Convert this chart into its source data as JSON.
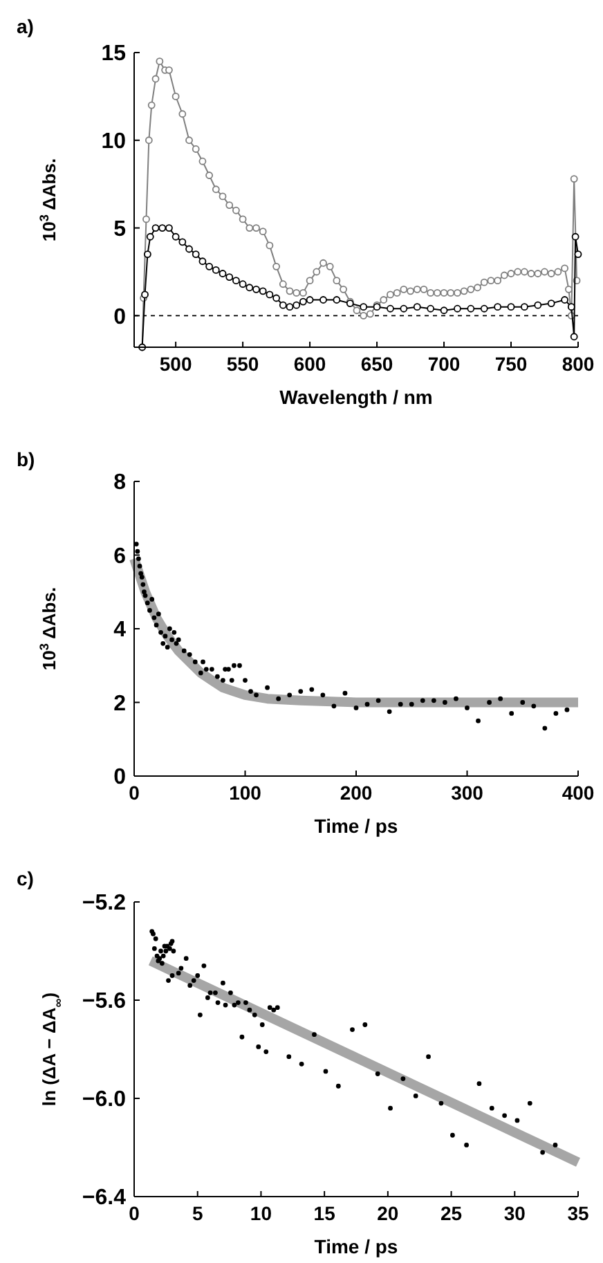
{
  "chart_data": [
    {
      "type": "line",
      "title": "a)",
      "xlabel": "Wavelength / nm",
      "ylabel": "10$^{3}$ ΔAbs.",
      "xlim": [
        469,
        800
      ],
      "ylim": [
        -1.8,
        15
      ],
      "xticks": [
        500,
        550,
        600,
        650,
        700,
        750,
        800
      ],
      "yticks": [
        0,
        5,
        10,
        15
      ],
      "marker": "circle",
      "ref_lines": [
        {
          "axis": "y",
          "value": 0,
          "line_style": "dashed",
          "color": "#000000"
        }
      ],
      "series": [
        {
          "color": "#7f7f7f",
          "x": [
            475,
            476,
            478,
            480,
            482,
            485,
            488,
            492,
            495,
            500,
            505,
            510,
            515,
            520,
            525,
            530,
            535,
            540,
            545,
            550,
            555,
            560,
            565,
            570,
            575,
            580,
            585,
            590,
            595,
            600,
            605,
            610,
            615,
            620,
            625,
            630,
            635,
            640,
            645,
            650,
            655,
            660,
            665,
            670,
            675,
            680,
            685,
            690,
            695,
            700,
            705,
            710,
            715,
            720,
            725,
            730,
            735,
            740,
            745,
            750,
            755,
            760,
            765,
            770,
            775,
            780,
            785,
            790,
            793,
            795,
            797,
            799
          ],
          "values": [
            -1.8,
            1,
            5.5,
            10,
            12,
            13.5,
            14.5,
            14,
            14,
            12.5,
            11.5,
            10,
            9.5,
            8.8,
            8,
            7.2,
            6.8,
            6.3,
            6,
            5.5,
            5,
            5,
            4.8,
            4,
            2.8,
            1.8,
            1.4,
            1.3,
            1.3,
            2,
            2.5,
            3,
            2.8,
            2,
            1.5,
            0.8,
            0.3,
            0,
            0.1,
            0.6,
            0.9,
            1.2,
            1.3,
            1.5,
            1.4,
            1.5,
            1.5,
            1.3,
            1.3,
            1.3,
            1.3,
            1.3,
            1.4,
            1.5,
            1.6,
            1.9,
            2,
            2,
            2.3,
            2.4,
            2.5,
            2.5,
            2.4,
            2.4,
            2.5,
            2.4,
            2.5,
            2.7,
            1.5,
            0,
            7.8,
            2
          ]
        },
        {
          "color": "#000000",
          "x": [
            475,
            477,
            479,
            481,
            485,
            490,
            495,
            500,
            505,
            510,
            515,
            520,
            525,
            530,
            535,
            540,
            545,
            550,
            555,
            560,
            565,
            570,
            575,
            580,
            585,
            590,
            595,
            600,
            610,
            620,
            630,
            640,
            650,
            660,
            670,
            680,
            690,
            700,
            710,
            720,
            730,
            740,
            750,
            760,
            770,
            780,
            790,
            795,
            797,
            798,
            800
          ],
          "values": [
            -1.8,
            1.2,
            3.5,
            4.5,
            5,
            5,
            5,
            4.5,
            4.2,
            3.8,
            3.5,
            3.1,
            2.8,
            2.6,
            2.4,
            2.2,
            2,
            1.8,
            1.6,
            1.5,
            1.4,
            1.2,
            1,
            0.6,
            0.5,
            0.6,
            0.8,
            0.9,
            0.9,
            0.9,
            0.7,
            0.5,
            0.5,
            0.4,
            0.4,
            0.5,
            0.4,
            0.3,
            0.4,
            0.4,
            0.4,
            0.5,
            0.5,
            0.5,
            0.6,
            0.7,
            0.9,
            0.5,
            -1.2,
            4.5,
            3.5
          ]
        }
      ]
    },
    {
      "type": "scatter",
      "title": "b)",
      "xlabel": "Time / ps",
      "ylabel": "10$^{3}$ ΔAbs.",
      "xlim": [
        0,
        400
      ],
      "ylim": [
        0,
        8
      ],
      "xticks": [
        0,
        100,
        200,
        300,
        400
      ],
      "yticks": [
        0,
        2,
        4,
        6,
        8
      ],
      "marker": "circle",
      "series": [
        {
          "type": "line",
          "marker": "none",
          "color": "#a6a6a6",
          "x": [
            0,
            10,
            20,
            30,
            40,
            50,
            60,
            70,
            80,
            90,
            100,
            120,
            150,
            200,
            400
          ],
          "values": [
            5.9,
            5.0,
            4.3,
            3.8,
            3.4,
            3.1,
            2.8,
            2.6,
            2.4,
            2.3,
            2.2,
            2.1,
            2.05,
            2.0,
            2.0
          ]
        },
        {
          "color": "#000000",
          "x": [
            2,
            3,
            4,
            5,
            6,
            7,
            8,
            9,
            10,
            12,
            14,
            16,
            18,
            20,
            22,
            24,
            26,
            28,
            30,
            32,
            34,
            36,
            38,
            40,
            45,
            50,
            55,
            60,
            62,
            65,
            70,
            75,
            80,
            82,
            85,
            88,
            90,
            95,
            100,
            105,
            110,
            120,
            130,
            140,
            150,
            160,
            170,
            180,
            190,
            200,
            210,
            220,
            230,
            240,
            250,
            260,
            270,
            280,
            290,
            300,
            310,
            320,
            330,
            340,
            350,
            360,
            370,
            380,
            390
          ],
          "values": [
            6.3,
            6.1,
            5.9,
            5.7,
            5.5,
            5.4,
            5.2,
            5.0,
            4.9,
            4.7,
            4.5,
            4.8,
            4.3,
            4.1,
            4.4,
            3.9,
            3.6,
            3.8,
            3.5,
            4.0,
            3.7,
            3.9,
            3.6,
            3.7,
            3.4,
            3.3,
            3.1,
            2.8,
            3.1,
            2.9,
            2.9,
            2.7,
            2.6,
            2.9,
            2.9,
            2.6,
            3.0,
            3.0,
            2.6,
            2.3,
            2.2,
            2.4,
            2.1,
            2.2,
            2.3,
            2.35,
            2.2,
            1.9,
            2.25,
            1.85,
            1.95,
            2.05,
            1.75,
            1.95,
            1.95,
            2.05,
            2.05,
            2.0,
            2.1,
            1.85,
            1.5,
            2.0,
            2.1,
            1.7,
            2.0,
            1.9,
            1.3,
            1.7,
            1.8
          ]
        }
      ]
    },
    {
      "type": "scatter",
      "title": "c)",
      "xlabel": "Time / ps",
      "ylabel": "ln (ΔA − ΔA$_{∞}$)",
      "xlim": [
        0,
        35
      ],
      "ylim": [
        -6.4,
        -5.2
      ],
      "xticks": [
        0,
        5,
        10,
        15,
        20,
        25,
        30,
        35
      ],
      "yticks": [
        {
          "value": -5.2,
          "label": "−5.2"
        },
        {
          "value": -5.6,
          "label": "−5.6"
        },
        {
          "value": -6.0,
          "label": "−6.0"
        },
        {
          "value": -6.4,
          "label": "−6.4"
        }
      ],
      "marker": "circle",
      "series": [
        {
          "type": "line",
          "marker": "none",
          "color": "#a6a6a6",
          "x": [
            1.3,
            35
          ],
          "values": [
            -5.44,
            -6.26
          ]
        },
        {
          "color": "#000000",
          "x": [
            1.4,
            1.5,
            1.6,
            1.7,
            1.8,
            1.9,
            2.0,
            2.1,
            2.2,
            2.3,
            2.4,
            2.5,
            2.6,
            2.7,
            2.8,
            2.9,
            3.0,
            3.0,
            3.1,
            3.5,
            3.7,
            4.1,
            4.4,
            4.7,
            5.0,
            5.2,
            5.5,
            5.8,
            6.0,
            6.4,
            6.6,
            7.0,
            7.2,
            7.6,
            7.9,
            8.2,
            8.5,
            8.8,
            9.1,
            9.5,
            9.8,
            10.1,
            10.4,
            10.7,
            11.0,
            11.3,
            12.2,
            13.2,
            14.2,
            15.1,
            16.1,
            17.2,
            18.2,
            19.2,
            20.2,
            21.2,
            22.2,
            23.2,
            24.2,
            25.1,
            26.2,
            27.2,
            28.2,
            29.2,
            30.2,
            31.2,
            32.2,
            33.2
          ],
          "values": [
            -5.32,
            -5.33,
            -5.39,
            -5.35,
            -5.42,
            -5.44,
            -5.43,
            -5.4,
            -5.45,
            -5.42,
            -5.38,
            -5.4,
            -5.38,
            -5.52,
            -5.39,
            -5.37,
            -5.36,
            -5.5,
            -5.4,
            -5.49,
            -5.47,
            -5.43,
            -5.54,
            -5.52,
            -5.5,
            -5.66,
            -5.46,
            -5.59,
            -5.57,
            -5.57,
            -5.61,
            -5.53,
            -5.62,
            -5.57,
            -5.62,
            -5.61,
            -5.75,
            -5.61,
            -5.64,
            -5.66,
            -5.79,
            -5.7,
            -5.81,
            -5.63,
            -5.64,
            -5.63,
            -5.83,
            -5.86,
            -5.74,
            -5.89,
            -5.95,
            -5.72,
            -5.7,
            -5.9,
            -6.04,
            -5.92,
            -5.99,
            -5.83,
            -6.02,
            -6.15,
            -6.19,
            -5.94,
            -6.04,
            -6.07,
            -6.09,
            -6.02,
            -6.22,
            -6.19
          ]
        }
      ]
    }
  ]
}
